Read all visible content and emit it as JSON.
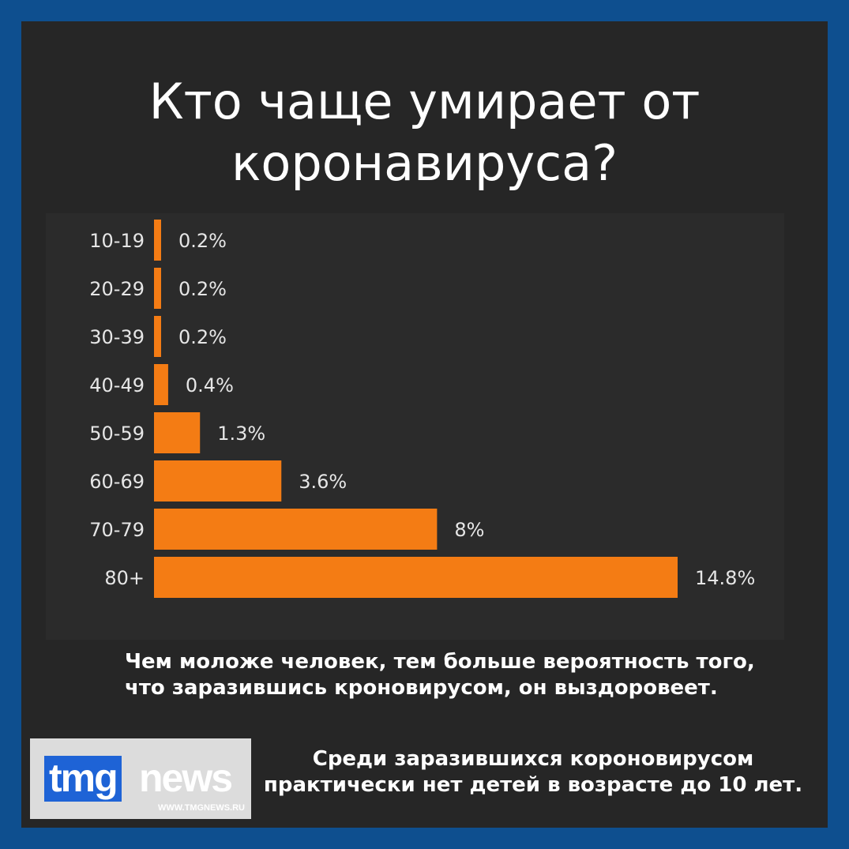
{
  "title_lines": [
    "Кто чаще умирает от",
    "коронавируса?"
  ],
  "chart_data": {
    "type": "bar",
    "orientation": "horizontal",
    "categories": [
      "10-19",
      "20-29",
      "30-39",
      "40-49",
      "50-59",
      "60-69",
      "70-79",
      "80+"
    ],
    "values": [
      0.2,
      0.2,
      0.2,
      0.4,
      1.3,
      3.6,
      8,
      14.8
    ],
    "value_labels": [
      "0.2%",
      "0.2%",
      "0.2%",
      "0.4%",
      "1.3%",
      "3.6%",
      "8%",
      "14.8%"
    ],
    "unit": "%",
    "xlim": [
      0,
      14.8
    ],
    "grid": false,
    "bar_color": "#f47c14"
  },
  "note_lines": [
    "Чем моложе человек, тем больше вероятность того,",
    "что заразившись кроновирусом, он выздоровеет."
  ],
  "footer_lines": [
    "Среди заразившихся короновирусом",
    "практически нет детей в возрасте до 10 лет."
  ],
  "logo": {
    "tmg": "tmg",
    "news": "news",
    "url": "WWW.TMGNEWS.RU"
  },
  "colors": {
    "background": "#262626",
    "frame": "#0e4f8f",
    "accent": "#f47c14",
    "logo_blue": "#1e63d6"
  }
}
